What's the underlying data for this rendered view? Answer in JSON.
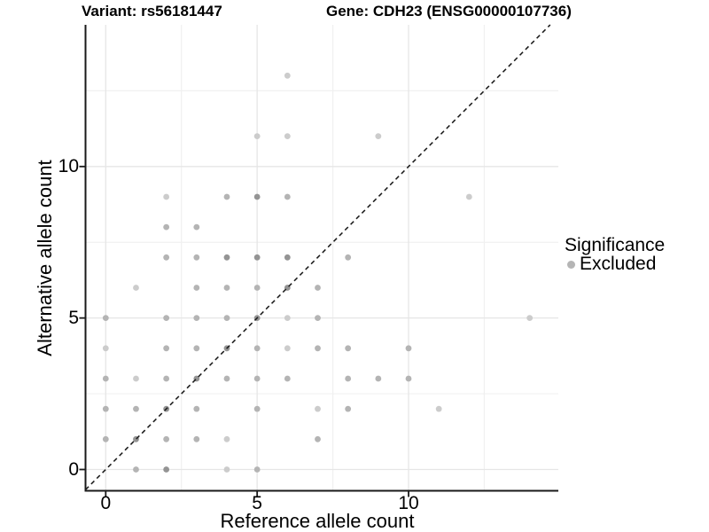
{
  "figure": {
    "title_left": "Variant: rs56181447",
    "title_right": "Gene: CDH23 (ENSG00000107736)"
  },
  "chart_data": {
    "type": "scatter",
    "title": "Variant: rs56181447 — Gene: CDH23 (ENSG00000107736)",
    "xlabel": "Reference allele count",
    "ylabel": "Alternative allele count",
    "xlim": [
      -0.7,
      14.9
    ],
    "ylim": [
      -0.7,
      14.7
    ],
    "x_ticks": [
      0,
      5,
      10
    ],
    "y_ticks": [
      0,
      5,
      10
    ],
    "x_minor_gridlines": [
      2.5,
      7.5,
      12.5
    ],
    "y_minor_gridlines": [
      2.5,
      7.5,
      12.5
    ],
    "grid": "major and minor, light gray on white",
    "identity_line": {
      "style": "dashed",
      "slope": 1,
      "intercept": 0,
      "color": "#1f1f1f"
    },
    "legend": {
      "position": "right",
      "title": "Significance",
      "entries": [
        {
          "label": "Excluded",
          "color": "#b5b5b5"
        }
      ]
    },
    "point_shade_colors": {
      "l": "#cccccc",
      "m": "#b4b4b4",
      "d": "#949494"
    },
    "series": [
      {
        "name": "Excluded",
        "points": [
          [
            1,
            0,
            "m"
          ],
          [
            2,
            0,
            "d"
          ],
          [
            4,
            0,
            "l"
          ],
          [
            5,
            0,
            "m"
          ],
          [
            0,
            1,
            "m"
          ],
          [
            1,
            1,
            "d"
          ],
          [
            2,
            1,
            "m"
          ],
          [
            3,
            1,
            "m"
          ],
          [
            4,
            1,
            "l"
          ],
          [
            7,
            1,
            "m"
          ],
          [
            0,
            2,
            "m"
          ],
          [
            1,
            2,
            "m"
          ],
          [
            2,
            2,
            "d"
          ],
          [
            3,
            2,
            "m"
          ],
          [
            5,
            2,
            "m"
          ],
          [
            7,
            2,
            "l"
          ],
          [
            8,
            2,
            "m"
          ],
          [
            11,
            2,
            "l"
          ],
          [
            0,
            3,
            "m"
          ],
          [
            1,
            3,
            "l"
          ],
          [
            2,
            3,
            "m"
          ],
          [
            3,
            3,
            "d"
          ],
          [
            4,
            3,
            "m"
          ],
          [
            5,
            3,
            "m"
          ],
          [
            6,
            3,
            "m"
          ],
          [
            8,
            3,
            "m"
          ],
          [
            9,
            3,
            "m"
          ],
          [
            10,
            3,
            "m"
          ],
          [
            0,
            4,
            "l"
          ],
          [
            2,
            4,
            "m"
          ],
          [
            3,
            4,
            "m"
          ],
          [
            4,
            4,
            "d"
          ],
          [
            5,
            4,
            "m"
          ],
          [
            6,
            4,
            "l"
          ],
          [
            7,
            4,
            "m"
          ],
          [
            8,
            4,
            "m"
          ],
          [
            10,
            4,
            "m"
          ],
          [
            0,
            5,
            "m"
          ],
          [
            2,
            5,
            "m"
          ],
          [
            3,
            5,
            "m"
          ],
          [
            4,
            5,
            "m"
          ],
          [
            5,
            5,
            "d"
          ],
          [
            6,
            5,
            "l"
          ],
          [
            7,
            5,
            "m"
          ],
          [
            14,
            5,
            "l"
          ],
          [
            1,
            6,
            "l"
          ],
          [
            3,
            6,
            "m"
          ],
          [
            4,
            6,
            "m"
          ],
          [
            5,
            6,
            "m"
          ],
          [
            6,
            6,
            "d"
          ],
          [
            7,
            6,
            "m"
          ],
          [
            2,
            7,
            "m"
          ],
          [
            3,
            7,
            "m"
          ],
          [
            4,
            7,
            "d"
          ],
          [
            5,
            7,
            "d"
          ],
          [
            6,
            7,
            "d"
          ],
          [
            8,
            7,
            "m"
          ],
          [
            2,
            8,
            "m"
          ],
          [
            3,
            8,
            "m"
          ],
          [
            2,
            9,
            "l"
          ],
          [
            4,
            9,
            "m"
          ],
          [
            5,
            9,
            "d"
          ],
          [
            6,
            9,
            "m"
          ],
          [
            12,
            9,
            "l"
          ],
          [
            5,
            11,
            "l"
          ],
          [
            6,
            11,
            "l"
          ],
          [
            9,
            11,
            "l"
          ],
          [
            6,
            13,
            "l"
          ]
        ]
      }
    ]
  }
}
